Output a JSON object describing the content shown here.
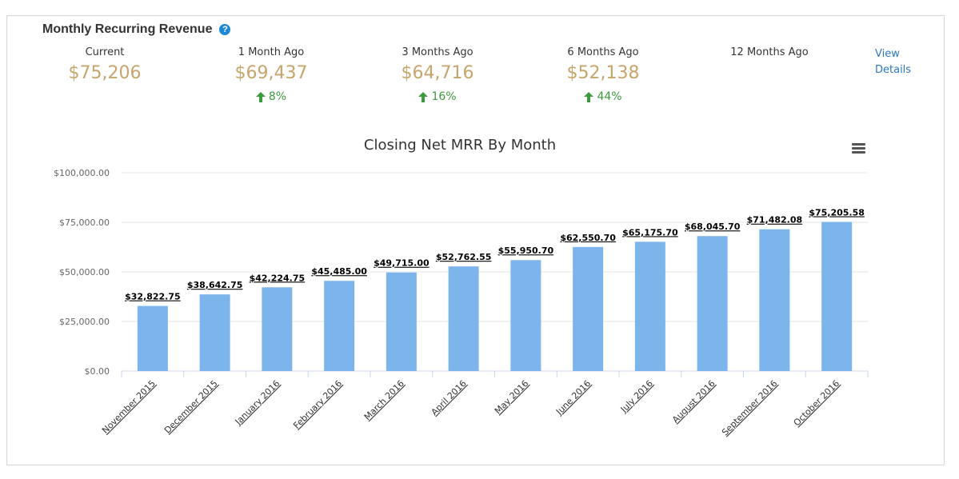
{
  "widget": {
    "title": "Monthly Recurring Revenue",
    "help_icon": "question-circle-icon",
    "help_glyph": "?"
  },
  "metrics": [
    {
      "label": "Current",
      "value": "$75,206",
      "change": ""
    },
    {
      "label": "1 Month Ago",
      "value": "$69,437",
      "change": "8%"
    },
    {
      "label": "3 Months Ago",
      "value": "$64,716",
      "change": "16%"
    },
    {
      "label": "6 Months Ago",
      "value": "$52,138",
      "change": "44%"
    },
    {
      "label": "12 Months Ago",
      "value": "",
      "change": ""
    }
  ],
  "view_details": {
    "line1": "View",
    "line2": "Details"
  },
  "chart_menu_icon": "hamburger-menu-icon",
  "colors": {
    "bar": "#7cb5ec",
    "metric_value": "#c7a46a",
    "increase": "#3c9a3c",
    "link": "#2a78c2",
    "help_icon": "#1e88d6"
  },
  "chart_data": {
    "type": "bar",
    "title": "Closing Net MRR By Month",
    "xlabel": "",
    "ylabel": "",
    "ylim": [
      0,
      100000
    ],
    "y_ticks": [
      {
        "value": 0,
        "label": "$0.00"
      },
      {
        "value": 25000,
        "label": "$25,000.00"
      },
      {
        "value": 50000,
        "label": "$50,000.00"
      },
      {
        "value": 75000,
        "label": "$75,000.00"
      },
      {
        "value": 100000,
        "label": "$100,000.00"
      }
    ],
    "grid": true,
    "categories": [
      "November 2015",
      "December 2015",
      "January 2016",
      "February 2016",
      "March 2016",
      "April 2016",
      "May 2016",
      "June 2016",
      "July 2016",
      "August 2016",
      "September 2016",
      "October 2016"
    ],
    "values": [
      32822.75,
      38642.75,
      42224.75,
      45485.0,
      49715.0,
      52762.55,
      55950.7,
      62550.7,
      65175.7,
      68045.7,
      71482.08,
      75205.58
    ],
    "data_labels": [
      "$32,822.75",
      "$38,642.75",
      "$42,224.75",
      "$45,485.00",
      "$49,715.00",
      "$52,762.55",
      "$55,950.70",
      "$62,550.70",
      "$65,175.70",
      "$68,045.70",
      "$71,482.08",
      "$75,205.58"
    ]
  }
}
